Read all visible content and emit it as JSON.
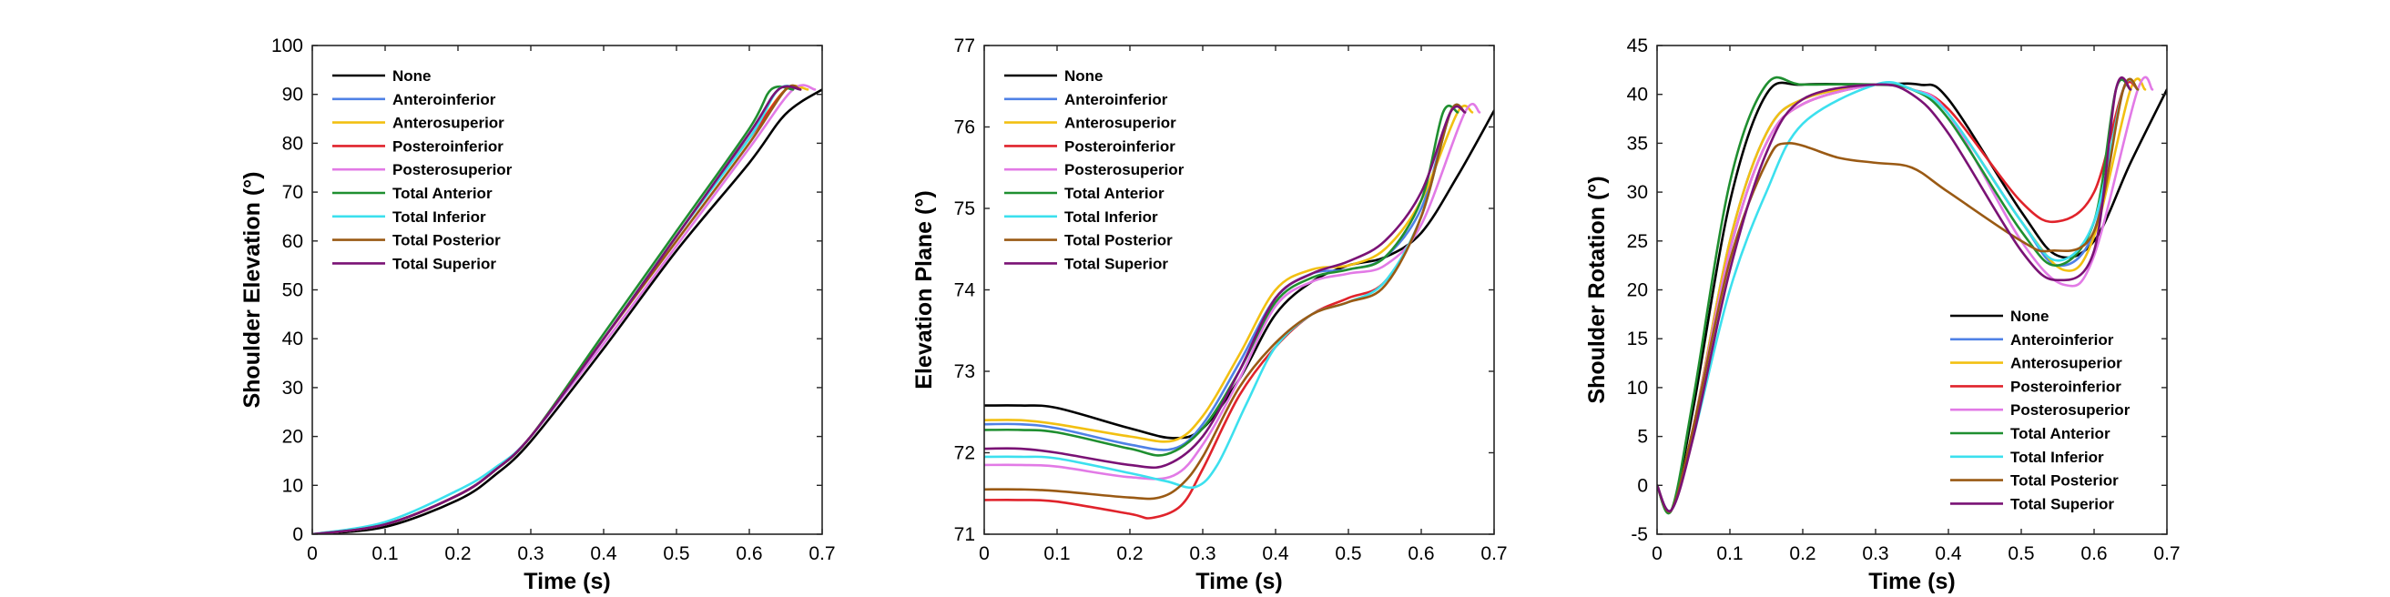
{
  "series_styles": [
    {
      "name": "None",
      "color": "#000000"
    },
    {
      "name": "Anteroinferior",
      "color": "#4f81e6"
    },
    {
      "name": "Anterosuperior",
      "color": "#f2c012"
    },
    {
      "name": "Posteroinferior",
      "color": "#e0232b"
    },
    {
      "name": "Posterosuperior",
      "color": "#e27ae6"
    },
    {
      "name": "Total Anterior",
      "color": "#1f8f30"
    },
    {
      "name": "Total Inferior",
      "color": "#3ce0ee"
    },
    {
      "name": "Total Posterior",
      "color": "#9a5a14"
    },
    {
      "name": "Total Superior",
      "color": "#7a1275"
    }
  ],
  "chart_data": [
    {
      "type": "line",
      "xlabel": "Time (s)",
      "ylabel": "Shoulder Elevation (°)",
      "xlim": [
        0,
        0.7
      ],
      "ylim": [
        0,
        100
      ],
      "xticks": [
        0,
        0.1,
        0.2,
        0.3,
        0.4,
        0.5,
        0.6,
        0.7
      ],
      "yticks": [
        0,
        10,
        20,
        30,
        40,
        50,
        60,
        70,
        80,
        90,
        100
      ],
      "legend_position": "top-left",
      "series": [
        {
          "name": "None",
          "x": [
            0,
            0.1,
            0.2,
            0.25,
            0.3,
            0.4,
            0.5,
            0.6,
            0.65,
            0.7
          ],
          "y": [
            0,
            1.5,
            7,
            12,
            19,
            38,
            58,
            76,
            86,
            91
          ]
        },
        {
          "name": "Anteroinferior",
          "x": [
            0,
            0.1,
            0.2,
            0.25,
            0.3,
            0.4,
            0.5,
            0.6,
            0.64,
            0.67
          ],
          "y": [
            0,
            2,
            8,
            13,
            20,
            40,
            61,
            82,
            91,
            91
          ]
        },
        {
          "name": "Anterosuperior",
          "x": [
            0,
            0.1,
            0.2,
            0.25,
            0.3,
            0.4,
            0.5,
            0.6,
            0.65,
            0.68
          ],
          "y": [
            0,
            2,
            8,
            13,
            20,
            40,
            61,
            81,
            91,
            91
          ]
        },
        {
          "name": "Posteroinferior",
          "x": [
            0,
            0.1,
            0.2,
            0.25,
            0.3,
            0.4,
            0.5,
            0.6,
            0.65,
            0.67
          ],
          "y": [
            0,
            2,
            8,
            13,
            20,
            40,
            61,
            81,
            91,
            91
          ]
        },
        {
          "name": "Posterosuperior",
          "x": [
            0,
            0.1,
            0.2,
            0.25,
            0.3,
            0.4,
            0.5,
            0.6,
            0.66,
            0.69
          ],
          "y": [
            0,
            2,
            8,
            13,
            20,
            39,
            59,
            79,
            91,
            91
          ]
        },
        {
          "name": "Total Anterior",
          "x": [
            0,
            0.1,
            0.2,
            0.25,
            0.3,
            0.4,
            0.5,
            0.6,
            0.63,
            0.66
          ],
          "y": [
            0,
            2,
            8,
            13,
            20,
            41,
            62,
            83,
            91,
            91
          ]
        },
        {
          "name": "Total Inferior",
          "x": [
            0,
            0.1,
            0.2,
            0.25,
            0.3,
            0.4,
            0.5,
            0.6,
            0.64,
            0.67
          ],
          "y": [
            0,
            2.5,
            9,
            13.5,
            20,
            40,
            61,
            81,
            91,
            91
          ]
        },
        {
          "name": "Total Posterior",
          "x": [
            0,
            0.1,
            0.2,
            0.25,
            0.3,
            0.4,
            0.5,
            0.6,
            0.65,
            0.67
          ],
          "y": [
            0,
            2,
            8,
            13,
            20,
            40,
            60,
            80,
            91,
            91
          ]
        },
        {
          "name": "Total Superior",
          "x": [
            0,
            0.1,
            0.2,
            0.25,
            0.3,
            0.4,
            0.5,
            0.6,
            0.64,
            0.67
          ],
          "y": [
            0,
            2,
            8,
            13,
            20,
            40,
            61,
            82,
            91,
            91
          ]
        }
      ]
    },
    {
      "type": "line",
      "xlabel": "Time (s)",
      "ylabel": "Elevation Plane (°)",
      "xlim": [
        0,
        0.7
      ],
      "ylim": [
        71,
        77
      ],
      "xticks": [
        0,
        0.1,
        0.2,
        0.3,
        0.4,
        0.5,
        0.6,
        0.7
      ],
      "yticks": [
        71,
        72,
        73,
        74,
        75,
        76,
        77
      ],
      "legend_position": "top-left",
      "series": [
        {
          "name": "None",
          "x": [
            0,
            0.05,
            0.1,
            0.2,
            0.26,
            0.3,
            0.35,
            0.4,
            0.45,
            0.5,
            0.55,
            0.6,
            0.65,
            0.7
          ],
          "y": [
            72.58,
            72.58,
            72.55,
            72.3,
            72.18,
            72.3,
            72.9,
            73.7,
            74.1,
            74.3,
            74.4,
            74.7,
            75.4,
            76.2
          ]
        },
        {
          "name": "Anteroinferior",
          "x": [
            0,
            0.05,
            0.1,
            0.2,
            0.26,
            0.3,
            0.35,
            0.4,
            0.45,
            0.5,
            0.55,
            0.6,
            0.64,
            0.66
          ],
          "y": [
            72.35,
            72.35,
            72.3,
            72.1,
            72.05,
            72.35,
            73.1,
            73.9,
            74.2,
            74.25,
            74.4,
            75.0,
            76.18,
            76.18
          ]
        },
        {
          "name": "Anterosuperior",
          "x": [
            0,
            0.05,
            0.1,
            0.2,
            0.26,
            0.3,
            0.35,
            0.4,
            0.45,
            0.5,
            0.55,
            0.6,
            0.65,
            0.67
          ],
          "y": [
            72.4,
            72.4,
            72.35,
            72.2,
            72.15,
            72.45,
            73.2,
            74.0,
            74.25,
            74.3,
            74.5,
            75.1,
            76.18,
            76.18
          ]
        },
        {
          "name": "Posteroinferior",
          "x": [
            0,
            0.05,
            0.1,
            0.2,
            0.23,
            0.27,
            0.3,
            0.35,
            0.4,
            0.45,
            0.5,
            0.55,
            0.6,
            0.64,
            0.66
          ],
          "y": [
            71.42,
            71.42,
            71.4,
            71.25,
            71.2,
            71.35,
            71.8,
            72.7,
            73.3,
            73.7,
            73.9,
            74.1,
            74.9,
            76.18,
            76.18
          ]
        },
        {
          "name": "Posterosuperior",
          "x": [
            0,
            0.05,
            0.1,
            0.2,
            0.26,
            0.3,
            0.35,
            0.4,
            0.45,
            0.5,
            0.55,
            0.6,
            0.66,
            0.68
          ],
          "y": [
            71.85,
            71.85,
            71.83,
            71.7,
            71.72,
            72.1,
            72.9,
            73.8,
            74.1,
            74.2,
            74.3,
            74.8,
            76.18,
            76.18
          ]
        },
        {
          "name": "Total Anterior",
          "x": [
            0,
            0.05,
            0.1,
            0.2,
            0.25,
            0.3,
            0.35,
            0.4,
            0.45,
            0.5,
            0.55,
            0.6,
            0.63,
            0.65
          ],
          "y": [
            72.28,
            72.28,
            72.25,
            72.05,
            71.98,
            72.3,
            73.0,
            73.85,
            74.15,
            74.25,
            74.4,
            75.1,
            76.18,
            76.18
          ]
        },
        {
          "name": "Total Inferior",
          "x": [
            0,
            0.05,
            0.1,
            0.2,
            0.25,
            0.29,
            0.32,
            0.36,
            0.4,
            0.45,
            0.5,
            0.55,
            0.6,
            0.64,
            0.66
          ],
          "y": [
            71.95,
            71.95,
            71.93,
            71.75,
            71.65,
            71.58,
            71.85,
            72.6,
            73.3,
            73.7,
            73.85,
            74.1,
            74.9,
            76.18,
            76.18
          ]
        },
        {
          "name": "Total Posterior",
          "x": [
            0,
            0.05,
            0.1,
            0.2,
            0.24,
            0.27,
            0.3,
            0.35,
            0.4,
            0.45,
            0.5,
            0.55,
            0.6,
            0.64,
            0.66
          ],
          "y": [
            71.55,
            71.55,
            71.53,
            71.45,
            71.45,
            71.6,
            71.95,
            72.8,
            73.35,
            73.7,
            73.85,
            74.05,
            74.9,
            76.18,
            76.18
          ]
        },
        {
          "name": "Total Superior",
          "x": [
            0,
            0.05,
            0.1,
            0.2,
            0.25,
            0.3,
            0.35,
            0.4,
            0.45,
            0.5,
            0.55,
            0.6,
            0.64,
            0.66
          ],
          "y": [
            72.05,
            72.05,
            72.0,
            71.85,
            71.85,
            72.2,
            73.0,
            73.9,
            74.2,
            74.35,
            74.6,
            75.2,
            76.18,
            76.18
          ]
        }
      ]
    },
    {
      "type": "line",
      "xlabel": "Time (s)",
      "ylabel": "Shoulder Rotation (°)",
      "xlim": [
        0,
        0.7
      ],
      "ylim": [
        -5,
        45
      ],
      "xticks": [
        0,
        0.1,
        0.2,
        0.3,
        0.4,
        0.5,
        0.6,
        0.7
      ],
      "yticks": [
        -5,
        0,
        5,
        10,
        15,
        20,
        25,
        30,
        35,
        40,
        45
      ],
      "legend_position": "bottom-right",
      "series": [
        {
          "name": "None",
          "x": [
            0,
            0.02,
            0.05,
            0.1,
            0.15,
            0.2,
            0.3,
            0.36,
            0.4,
            0.5,
            0.55,
            0.6,
            0.65,
            0.7
          ],
          "y": [
            0,
            -2.5,
            8,
            29,
            40,
            41,
            41,
            41,
            39.5,
            28,
            23.5,
            25,
            33,
            40.5
          ]
        },
        {
          "name": "Anteroinferior",
          "x": [
            0,
            0.02,
            0.05,
            0.1,
            0.15,
            0.2,
            0.3,
            0.35,
            0.4,
            0.5,
            0.55,
            0.6,
            0.64,
            0.66
          ],
          "y": [
            0,
            -2.5,
            6,
            25,
            36,
            39.5,
            41,
            40.5,
            38,
            27,
            22.5,
            26,
            40.5,
            40.5
          ]
        },
        {
          "name": "Anterosuperior",
          "x": [
            0,
            0.02,
            0.05,
            0.1,
            0.15,
            0.2,
            0.3,
            0.35,
            0.4,
            0.5,
            0.56,
            0.6,
            0.65,
            0.67
          ],
          "y": [
            0,
            -2.5,
            6,
            25,
            36,
            39.5,
            41,
            40.5,
            38,
            27,
            22,
            25.5,
            40.5,
            40.5
          ]
        },
        {
          "name": "Posteroinferior",
          "x": [
            0,
            0.02,
            0.05,
            0.1,
            0.15,
            0.2,
            0.3,
            0.35,
            0.4,
            0.5,
            0.55,
            0.6,
            0.64,
            0.66
          ],
          "y": [
            0,
            -2.5,
            6,
            24,
            35,
            39,
            41,
            40.5,
            38.5,
            29,
            27,
            30,
            40.5,
            40.5
          ]
        },
        {
          "name": "Posterosuperior",
          "x": [
            0,
            0.02,
            0.05,
            0.1,
            0.15,
            0.2,
            0.3,
            0.35,
            0.4,
            0.5,
            0.56,
            0.6,
            0.66,
            0.68
          ],
          "y": [
            0,
            -2.5,
            6,
            24,
            35,
            39,
            41,
            40.5,
            38,
            25,
            20.5,
            23.5,
            40.5,
            40.5
          ]
        },
        {
          "name": "Total Anterior",
          "x": [
            0,
            0.02,
            0.05,
            0.1,
            0.15,
            0.2,
            0.3,
            0.35,
            0.4,
            0.5,
            0.55,
            0.6,
            0.63,
            0.65
          ],
          "y": [
            0,
            -2.5,
            9,
            31,
            41,
            41,
            41,
            40.5,
            37.5,
            26,
            22.5,
            27,
            40.5,
            40.5
          ]
        },
        {
          "name": "Total Inferior",
          "x": [
            0,
            0.02,
            0.05,
            0.1,
            0.15,
            0.2,
            0.3,
            0.35,
            0.4,
            0.5,
            0.55,
            0.6,
            0.64,
            0.66
          ],
          "y": [
            0,
            -2.5,
            5,
            20,
            30,
            37,
            41,
            40.5,
            38,
            27,
            23,
            27,
            40.5,
            40.5
          ]
        },
        {
          "name": "Total Posterior",
          "x": [
            0,
            0.02,
            0.05,
            0.1,
            0.15,
            0.18,
            0.25,
            0.3,
            0.35,
            0.4,
            0.5,
            0.54,
            0.6,
            0.64,
            0.66
          ],
          "y": [
            0,
            -2.5,
            6,
            23,
            33,
            35,
            33.5,
            33,
            32.5,
            30,
            25,
            24,
            26,
            40.5,
            40.5
          ]
        },
        {
          "name": "Total Superior",
          "x": [
            0,
            0.02,
            0.05,
            0.1,
            0.15,
            0.2,
            0.3,
            0.35,
            0.4,
            0.5,
            0.55,
            0.6,
            0.63,
            0.65
          ],
          "y": [
            0,
            -2.5,
            5,
            22,
            34,
            39.5,
            41,
            40,
            36,
            24,
            21,
            24,
            40.5,
            40.5
          ]
        }
      ]
    }
  ]
}
